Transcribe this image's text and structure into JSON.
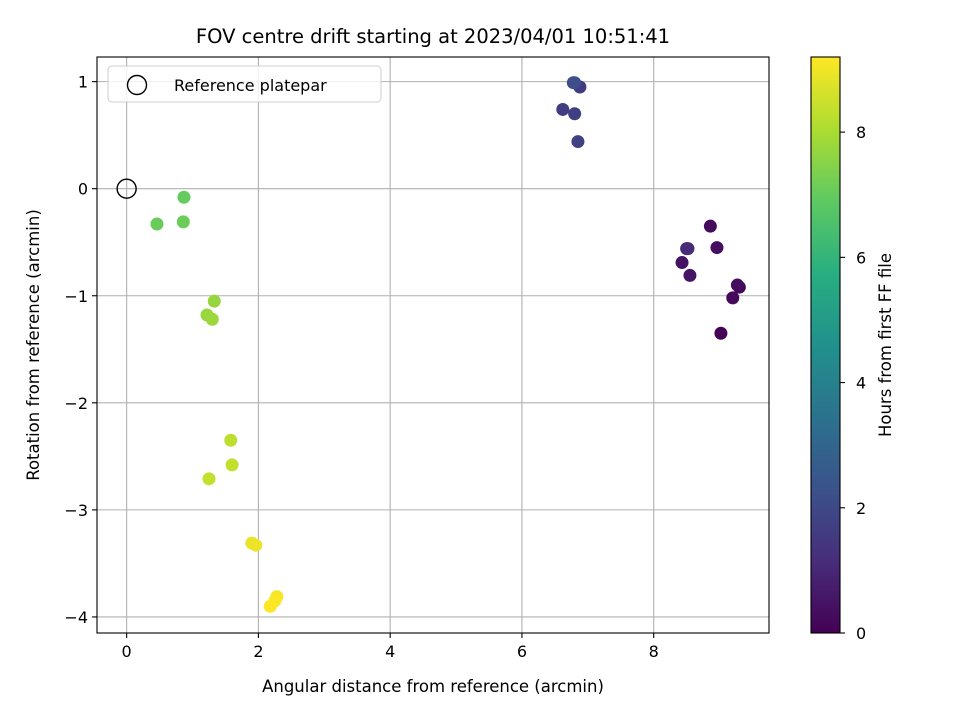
{
  "chart_data": {
    "type": "scatter",
    "title": "FOV centre drift starting at 2023/04/01 10:51:41",
    "xlabel": "Angular distance from reference (arcmin)",
    "ylabel": "Rotation from reference (arcmin)",
    "xlim": [
      -0.45,
      9.75
    ],
    "ylim": [
      -4.15,
      1.23
    ],
    "xticks": [
      0,
      2,
      4,
      6,
      8
    ],
    "yticks": [
      1,
      0,
      -1,
      -2,
      -3,
      -4
    ],
    "grid": true,
    "legend": {
      "placement": "top-left",
      "entries": [
        {
          "label": "Reference platepar",
          "marker": "open-circle"
        }
      ]
    },
    "reference_point": {
      "x": 0,
      "y": 0
    },
    "colorbar": {
      "label": "Hours from first FF file",
      "range": [
        0,
        9.2
      ],
      "ticks": [
        0,
        2,
        4,
        6,
        8
      ],
      "colormap": "viridis"
    },
    "points": [
      {
        "x": 9.02,
        "y": -1.35,
        "h": 0.1
      },
      {
        "x": 9.3,
        "y": -0.92,
        "h": 0.15
      },
      {
        "x": 9.2,
        "y": -1.02,
        "h": 0.2
      },
      {
        "x": 9.27,
        "y": -0.9,
        "h": 0.25
      },
      {
        "x": 8.86,
        "y": -0.35,
        "h": 0.3
      },
      {
        "x": 8.96,
        "y": -0.55,
        "h": 0.35
      },
      {
        "x": 8.43,
        "y": -0.69,
        "h": 0.45
      },
      {
        "x": 8.55,
        "y": -0.81,
        "h": 0.5
      },
      {
        "x": 8.5,
        "y": -0.56,
        "h": 1.0
      },
      {
        "x": 8.52,
        "y": -0.56,
        "h": 1.1
      },
      {
        "x": 6.88,
        "y": 0.95,
        "h": 1.6
      },
      {
        "x": 6.62,
        "y": 0.74,
        "h": 1.65
      },
      {
        "x": 6.8,
        "y": 0.7,
        "h": 1.7
      },
      {
        "x": 6.85,
        "y": 0.44,
        "h": 1.75
      },
      {
        "x": 6.78,
        "y": 0.99,
        "h": 2.1
      },
      {
        "x": 6.8,
        "y": 0.99,
        "h": 2.2
      },
      {
        "x": 0.87,
        "y": -0.08,
        "h": 7.0
      },
      {
        "x": 0.46,
        "y": -0.33,
        "h": 7.05
      },
      {
        "x": 0.86,
        "y": -0.31,
        "h": 7.1
      },
      {
        "x": 1.33,
        "y": -1.05,
        "h": 7.7
      },
      {
        "x": 1.22,
        "y": -1.18,
        "h": 7.75
      },
      {
        "x": 1.3,
        "y": -1.22,
        "h": 7.8
      },
      {
        "x": 1.58,
        "y": -2.35,
        "h": 8.3
      },
      {
        "x": 1.6,
        "y": -2.58,
        "h": 8.35
      },
      {
        "x": 1.25,
        "y": -2.71,
        "h": 8.4
      },
      {
        "x": 1.9,
        "y": -3.31,
        "h": 8.9
      },
      {
        "x": 1.96,
        "y": -3.33,
        "h": 8.95
      },
      {
        "x": 2.28,
        "y": -3.81,
        "h": 9.1
      },
      {
        "x": 2.25,
        "y": -3.85,
        "h": 9.15
      },
      {
        "x": 2.18,
        "y": -3.9,
        "h": 9.2
      }
    ]
  }
}
